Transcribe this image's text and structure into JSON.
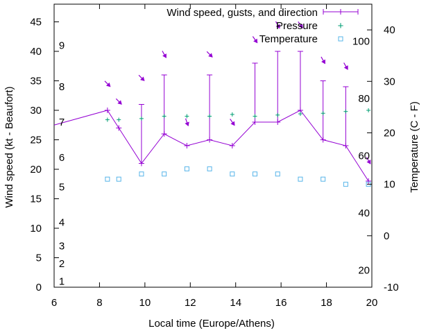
{
  "chart_data": {
    "type": "line",
    "title": "",
    "xlabel": "Local time (Europe/Athens)",
    "ylabel_left": "Wind speed (kt - Beaufort)",
    "ylabel_right": "Temperature (C - F)",
    "x_range": [
      6,
      20
    ],
    "y_left_range": [
      0,
      48
    ],
    "y_right_range": [
      -10,
      45
    ],
    "grid": false,
    "legend_placement": "top-right",
    "x_ticks": [
      "6",
      "8",
      "10",
      "12",
      "14",
      "16",
      "18",
      "20"
    ],
    "y_left_ticks": [
      "0",
      "5",
      "10",
      "15",
      "20",
      "25",
      "30",
      "35",
      "40",
      "45"
    ],
    "y_right_ticks": [
      "-10",
      "0",
      "10",
      "20",
      "30",
      "40"
    ],
    "beaufort_labels": [
      "1",
      "2",
      "3",
      "4",
      "5",
      "6",
      "7",
      "8",
      "9"
    ],
    "fahrenheit_labels": [
      "20",
      "40",
      "60",
      "80",
      "100"
    ],
    "legend": {
      "wind": "Wind speed, gusts, and direction",
      "pressure": "Pressure",
      "temperature": "Temperature"
    },
    "colors": {
      "wind": "#9400d3",
      "pressure": "#009e73",
      "temperature": "#56b4e9"
    },
    "series": [
      {
        "name": "Wind speed, gusts, and direction",
        "points": [
          {
            "x": 6.0,
            "y": 27.5
          },
          {
            "x": 8.35,
            "y": 30,
            "gust": 30
          },
          {
            "x": 8.85,
            "y": 27,
            "gust": 27
          },
          {
            "x": 9.85,
            "y": 21,
            "gust": 31
          },
          {
            "x": 10.85,
            "y": 26,
            "gust": 36
          },
          {
            "x": 11.85,
            "y": 24,
            "gust": 24
          },
          {
            "x": 12.85,
            "y": 25,
            "gust": 36
          },
          {
            "x": 13.85,
            "y": 24,
            "gust": 24
          },
          {
            "x": 14.85,
            "y": 28,
            "gust": 38
          },
          {
            "x": 15.85,
            "y": 28,
            "gust": 40
          },
          {
            "x": 16.85,
            "y": 30,
            "gust": 40
          },
          {
            "x": 17.85,
            "y": 25,
            "gust": 35
          },
          {
            "x": 18.85,
            "y": 24,
            "gust": 34
          },
          {
            "x": 19.85,
            "y": 18,
            "gust": 18
          }
        ]
      },
      {
        "name": "Pressure",
        "points": [
          {
            "x": 8.35,
            "y": 28.4
          },
          {
            "x": 8.85,
            "y": 28.4
          },
          {
            "x": 9.85,
            "y": 28.6
          },
          {
            "x": 10.85,
            "y": 29.0
          },
          {
            "x": 11.85,
            "y": 29.0
          },
          {
            "x": 12.85,
            "y": 29.0
          },
          {
            "x": 13.85,
            "y": 29.3
          },
          {
            "x": 14.85,
            "y": 29.0
          },
          {
            "x": 15.85,
            "y": 29.2
          },
          {
            "x": 16.85,
            "y": 29.4
          },
          {
            "x": 17.85,
            "y": 29.5
          },
          {
            "x": 18.85,
            "y": 29.8
          },
          {
            "x": 19.85,
            "y": 30.0
          }
        ]
      },
      {
        "name": "Temperature",
        "points": [
          {
            "x": 8.35,
            "y": 11
          },
          {
            "x": 8.85,
            "y": 11
          },
          {
            "x": 9.85,
            "y": 12
          },
          {
            "x": 10.85,
            "y": 12
          },
          {
            "x": 11.85,
            "y": 13
          },
          {
            "x": 12.85,
            "y": 13
          },
          {
            "x": 13.85,
            "y": 12
          },
          {
            "x": 14.85,
            "y": 12
          },
          {
            "x": 15.85,
            "y": 12
          },
          {
            "x": 16.85,
            "y": 11
          },
          {
            "x": 17.85,
            "y": 11
          },
          {
            "x": 18.85,
            "y": 10
          },
          {
            "x": 19.85,
            "y": 10
          }
        ]
      }
    ],
    "direction_arrows": [
      {
        "x": 8.35,
        "y": 34.5,
        "bearing_deg": 135
      },
      {
        "x": 8.85,
        "y": 31.5,
        "bearing_deg": 135
      },
      {
        "x": 9.85,
        "y": 35.5,
        "bearing_deg": 135
      },
      {
        "x": 10.85,
        "y": 39.5,
        "bearing_deg": 150
      },
      {
        "x": 11.85,
        "y": 28.0,
        "bearing_deg": 160
      },
      {
        "x": 12.85,
        "y": 39.5,
        "bearing_deg": 135
      },
      {
        "x": 13.85,
        "y": 28.0,
        "bearing_deg": 145
      },
      {
        "x": 14.85,
        "y": 42.0,
        "bearing_deg": 145
      },
      {
        "x": 15.85,
        "y": 44.5,
        "bearing_deg": 150
      },
      {
        "x": 16.85,
        "y": 44.5,
        "bearing_deg": 145
      },
      {
        "x": 17.85,
        "y": 38.5,
        "bearing_deg": 150
      },
      {
        "x": 18.85,
        "y": 37.5,
        "bearing_deg": 150
      },
      {
        "x": 19.85,
        "y": 21.5,
        "bearing_deg": 150
      }
    ]
  }
}
